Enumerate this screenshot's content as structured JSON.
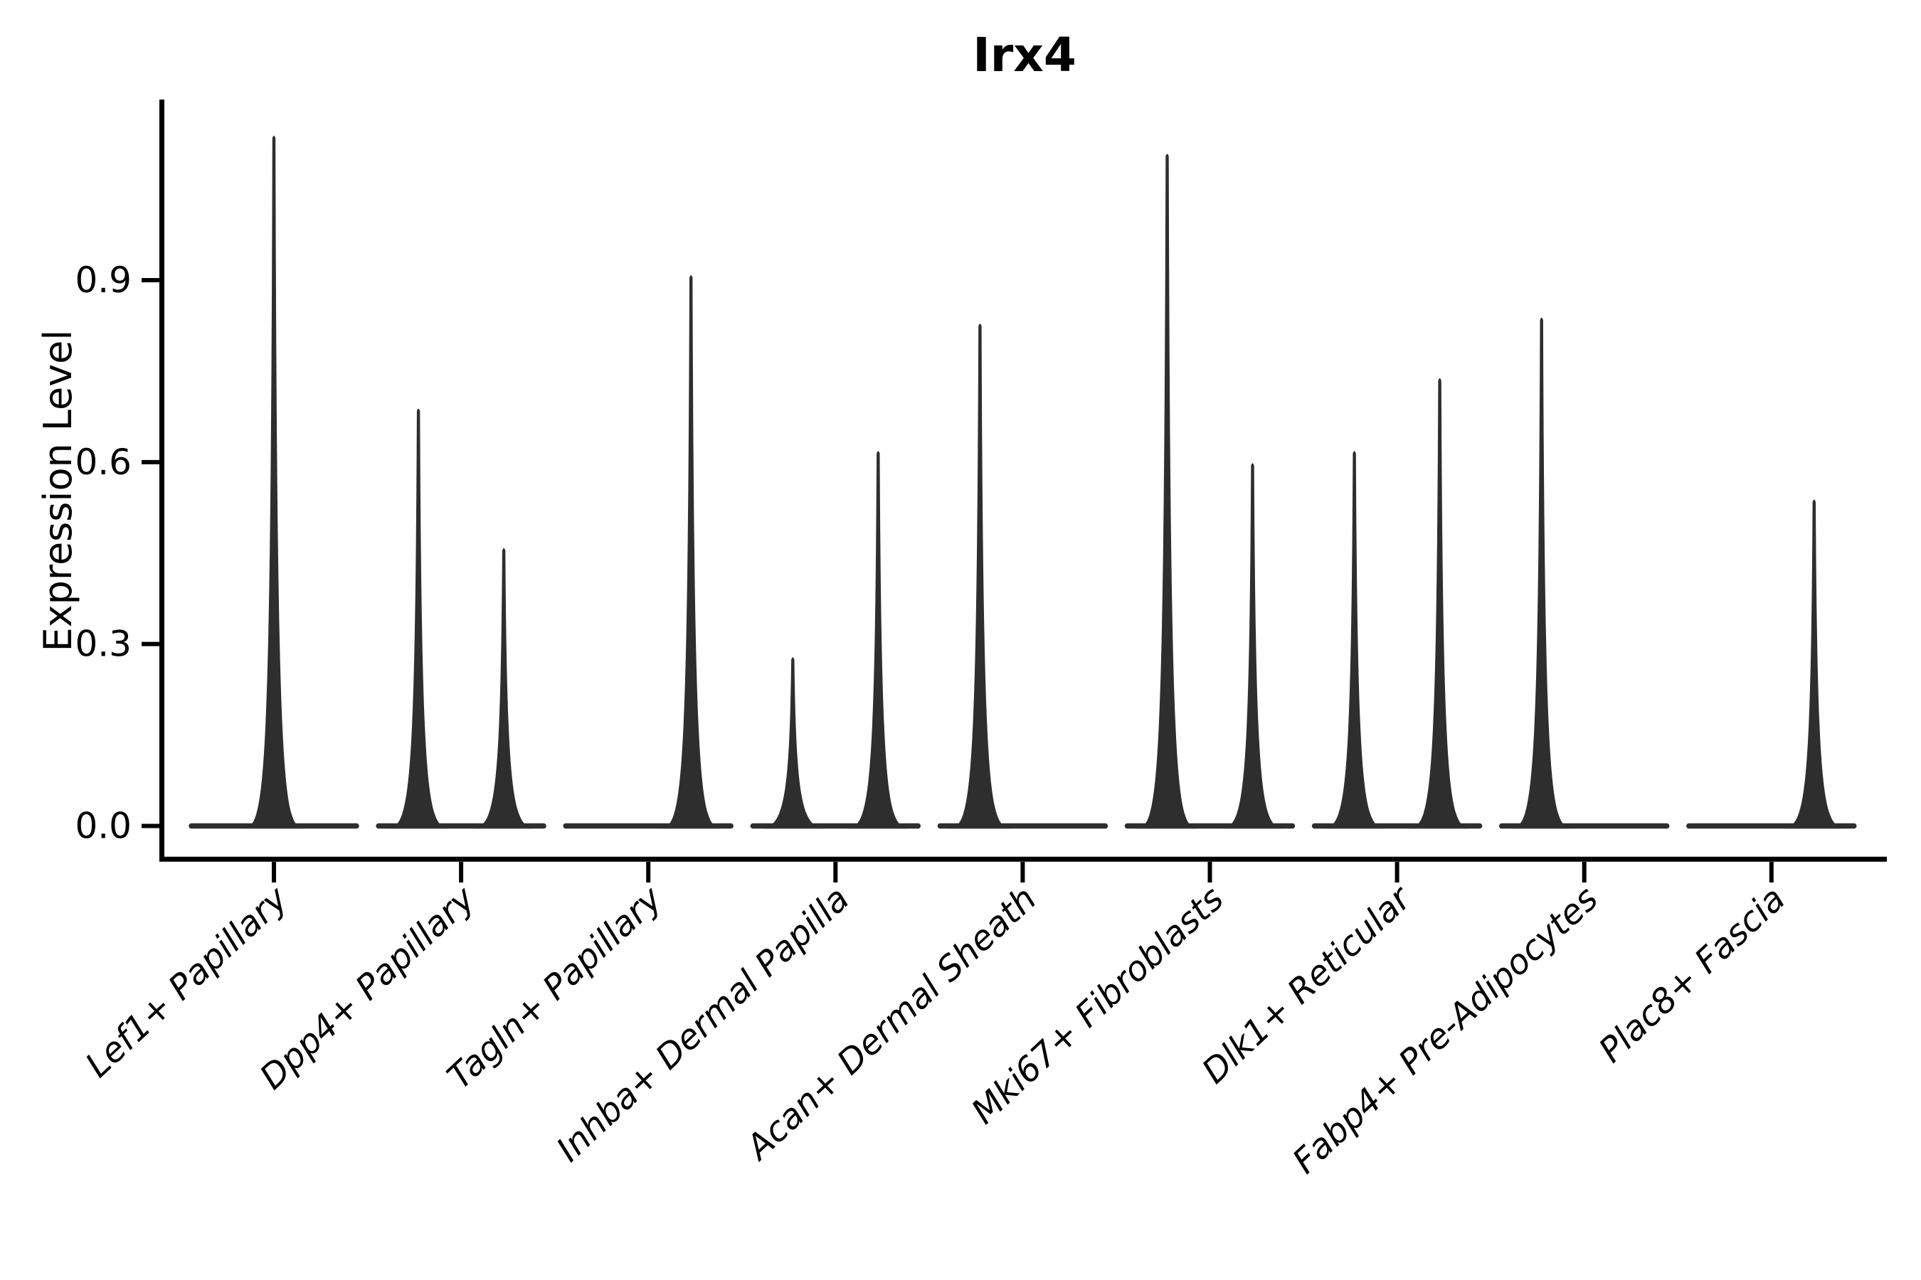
{
  "figure": {
    "title": "Irx4",
    "y_axis": {
      "label": "Expression Level",
      "tick_labels": [
        "0.0",
        "0.3",
        "0.6",
        "0.9"
      ]
    },
    "x_axis": {
      "tick_labels": [
        "Lef1+ Papillary",
        "Dpp4+ Papillary",
        "Tagln+ Papillary",
        "Inhba+ Dermal Papilla",
        "Acan+ Dermal Sheath",
        "Mki67+ Fibroblasts",
        "Dlk1+ Reticular",
        "Fabp4+ Pre-Adipocytes",
        "Plac8+ Fascia"
      ]
    }
  },
  "chart_data": {
    "type": "violin",
    "title": "Irx4",
    "xlabel": "",
    "ylabel": "Expression Level",
    "yticks": [
      0.0,
      0.3,
      0.6,
      0.9
    ],
    "ylim": [
      -0.06,
      1.2
    ],
    "grid": false,
    "legend": "none",
    "categories": [
      "Lef1+ Papillary",
      "Dpp4+ Papillary",
      "Tagln+ Papillary",
      "Inhba+ Dermal Papilla",
      "Acan+ Dermal Sheath",
      "Mki67+ Fibroblasts",
      "Dlk1+ Reticular",
      "Fabp4+ Pre-Adipocytes",
      "Plac8+ Fascia"
    ],
    "baseline_value": 0.0,
    "description": "Each group shows a violin collapsed to a flat bar at expression 0 with thin density spikes reaching the maximum expression value(s).",
    "violins": [
      {
        "category": "Lef1+ Papillary",
        "spikes": [
          {
            "slot": "center",
            "max_expression": 1.14
          }
        ]
      },
      {
        "category": "Dpp4+ Papillary",
        "spikes": [
          {
            "slot": "left",
            "max_expression": 0.69
          },
          {
            "slot": "right",
            "max_expression": 0.46
          }
        ]
      },
      {
        "category": "Tagln+ Papillary",
        "spikes": [
          {
            "slot": "right",
            "max_expression": 0.91
          }
        ]
      },
      {
        "category": "Inhba+ Dermal Papilla",
        "spikes": [
          {
            "slot": "left",
            "max_expression": 0.28
          },
          {
            "slot": "right",
            "max_expression": 0.62
          }
        ]
      },
      {
        "category": "Acan+ Dermal Sheath",
        "spikes": [
          {
            "slot": "left",
            "max_expression": 0.83
          }
        ]
      },
      {
        "category": "Mki67+ Fibroblasts",
        "spikes": [
          {
            "slot": "left",
            "max_expression": 1.11
          },
          {
            "slot": "right",
            "max_expression": 0.6
          }
        ]
      },
      {
        "category": "Dlk1+ Reticular",
        "spikes": [
          {
            "slot": "left",
            "max_expression": 0.62
          },
          {
            "slot": "right",
            "max_expression": 0.74
          }
        ]
      },
      {
        "category": "Fabp4+ Pre-Adipocytes",
        "spikes": [
          {
            "slot": "left",
            "max_expression": 0.84
          }
        ]
      },
      {
        "category": "Plac8+ Fascia",
        "spikes": [
          {
            "slot": "right",
            "max_expression": 0.54
          }
        ]
      }
    ],
    "colors": {
      "violin": "#2e2e2e",
      "spine": "#000000",
      "text": "#000000",
      "background": "#ffffff"
    }
  }
}
